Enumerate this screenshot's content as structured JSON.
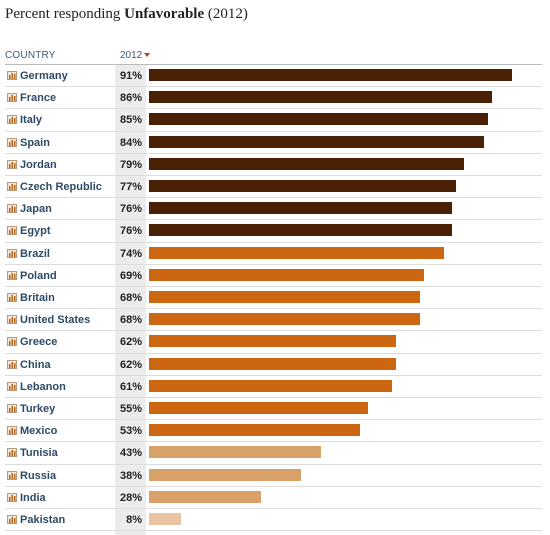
{
  "title": {
    "prefix": "Percent responding ",
    "emphasis": "Unfavorable",
    "suffix": " (2012)"
  },
  "header": {
    "country": "COUNTRY",
    "year": "2012"
  },
  "colors": {
    "dark": "#4a2105",
    "medium": "#cc6610",
    "light": "#d9a06a",
    "lightest": "#e8c4a2",
    "value_column": "#ececec"
  },
  "chart_data": {
    "type": "bar",
    "orientation": "horizontal",
    "title": "Percent responding Unfavorable (2012)",
    "categories": [
      "Germany",
      "France",
      "Italy",
      "Spain",
      "Jordan",
      "Czech Republic",
      "Japan",
      "Egypt",
      "Brazil",
      "Poland",
      "Britain",
      "United States",
      "Greece",
      "China",
      "Lebanon",
      "Turkey",
      "Mexico",
      "Tunisia",
      "Russia",
      "India",
      "Pakistan"
    ],
    "values": [
      91,
      86,
      85,
      84,
      79,
      77,
      76,
      76,
      74,
      69,
      68,
      68,
      62,
      62,
      61,
      55,
      53,
      43,
      38,
      28,
      8
    ],
    "value_labels": [
      "91%",
      "86%",
      "85%",
      "84%",
      "79%",
      "77%",
      "76%",
      "76%",
      "74%",
      "69%",
      "68%",
      "68%",
      "62%",
      "62%",
      "61%",
      "55%",
      "53%",
      "43%",
      "38%",
      "28%",
      "8%"
    ],
    "xlim": [
      0,
      100
    ],
    "grid": false,
    "sorted_by": "2012 descending"
  }
}
